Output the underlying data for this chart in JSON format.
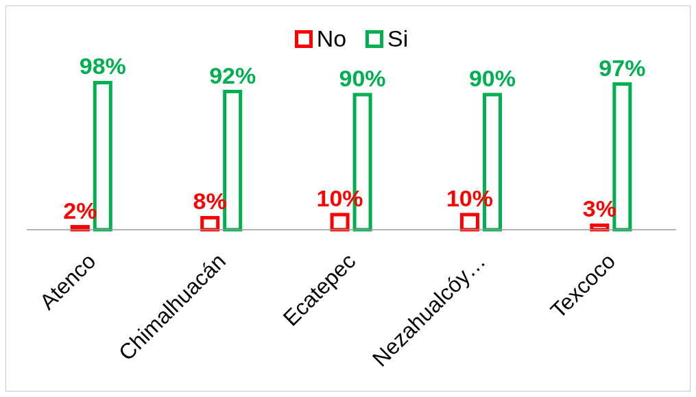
{
  "chart_data": {
    "type": "bar",
    "categories": [
      "Atenco",
      "Chimalhuacán",
      "Ecatepec",
      "Nezahualcóy…",
      "Texcoco"
    ],
    "series": [
      {
        "name": "No",
        "color": "#ff0000",
        "values": [
          2,
          8,
          10,
          10,
          3
        ],
        "value_labels": [
          "2%",
          "8%",
          "10%",
          "10%",
          "3%"
        ]
      },
      {
        "name": "Si",
        "color": "#00b050",
        "values": [
          98,
          92,
          90,
          90,
          97
        ],
        "value_labels": [
          "98%",
          "92%",
          "90%",
          "90%",
          "97%"
        ]
      }
    ],
    "legend": "top"
  }
}
